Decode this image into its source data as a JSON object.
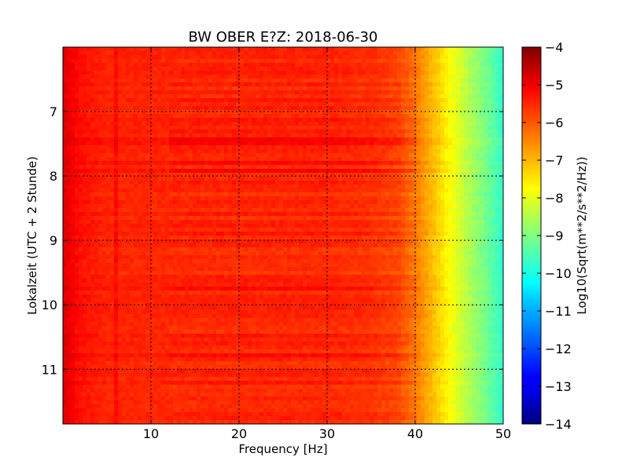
{
  "chart_data": {
    "type": "heatmap",
    "title": "BW OBER E?Z: 2018-06-30",
    "xlabel": "Frequency [Hz]",
    "ylabel": "Lokalzeit (UTC + 2 Stunde)",
    "xlim": [
      0,
      50
    ],
    "ylim": [
      6.0,
      11.85
    ],
    "y_inverted": true,
    "xticks": [
      10,
      20,
      30,
      40,
      50
    ],
    "yticks": [
      7,
      8,
      9,
      10,
      11
    ],
    "grid": true,
    "colormap": "jet",
    "colorbar": {
      "label": "Log10(Sqrt(m**2/s**2/Hz))",
      "range": [
        -14,
        -4
      ],
      "ticks": [
        -4,
        -5,
        -6,
        -7,
        -8,
        -9,
        -10,
        -11,
        -12,
        -13,
        -14
      ]
    },
    "profile_freq_hz": [
      0,
      2,
      5,
      10,
      20,
      30,
      35,
      38,
      40,
      42,
      44,
      46,
      48,
      50
    ],
    "profile_log10_value": [
      -4.9,
      -5.4,
      -5.6,
      -5.6,
      -5.6,
      -5.6,
      -5.7,
      -5.9,
      -6.4,
      -7.1,
      -7.8,
      -8.5,
      -9.1,
      -9.8
    ]
  }
}
